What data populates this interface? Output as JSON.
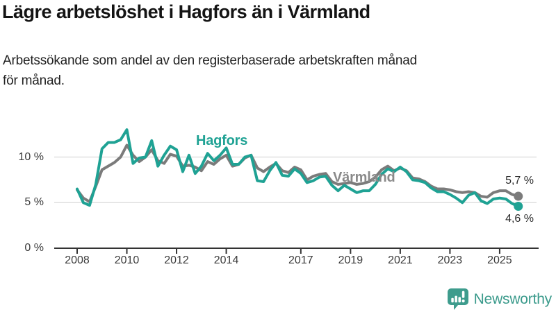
{
  "header": {
    "title": "Lägre arbetslöshet i Hagfors än i Värmland",
    "subtitle_lines": [
      "Arbetssökande som andel av den registerbaserade arbetskraften månad",
      "för månad."
    ]
  },
  "footer": {
    "brand": "Newsworthy",
    "logo_icon": "bar-chart-speech-bubble-icon",
    "brand_color": "#3a9a8b"
  },
  "chart_data": {
    "type": "line",
    "title": "Lägre arbetslöshet i Hagfors än i Värmland",
    "xlabel": "",
    "ylabel": "",
    "unit": "%",
    "grid": "horizontal-only",
    "legend": "inline-labels",
    "ylim": [
      0,
      13.7
    ],
    "grid_color": "#d9d9d9",
    "axis_color": "#333333",
    "x": [
      2008,
      2008.25,
      2008.5,
      2008.75,
      2009,
      2009.25,
      2009.5,
      2009.75,
      2010,
      2010.25,
      2010.5,
      2010.75,
      2011,
      2011.25,
      2011.5,
      2011.75,
      2012,
      2012.25,
      2012.5,
      2012.75,
      2013,
      2013.25,
      2013.5,
      2013.75,
      2014,
      2014.25,
      2014.5,
      2014.75,
      2015,
      2015.25,
      2015.5,
      2015.75,
      2016,
      2016.25,
      2016.5,
      2016.75,
      2017,
      2017.25,
      2017.5,
      2017.75,
      2018,
      2018.25,
      2018.5,
      2018.75,
      2019,
      2019.25,
      2019.5,
      2019.75,
      2020,
      2020.25,
      2020.5,
      2020.75,
      2021,
      2021.25,
      2021.5,
      2021.75,
      2022,
      2022.25,
      2022.5,
      2022.75,
      2023,
      2023.25,
      2023.5,
      2023.75,
      2024,
      2024.25,
      2024.5,
      2024.75,
      2025,
      2025.25,
      2025.5,
      2025.75
    ],
    "series": [
      {
        "name": "Värmland",
        "color": "#7b7b7b",
        "end_label": "5,7 %",
        "end_value": 5.7,
        "values": [
          6.4,
          5.5,
          5.1,
          6.8,
          8.6,
          9.0,
          9.4,
          10.0,
          11.3,
          10.2,
          9.5,
          10.0,
          10.8,
          9.6,
          9.3,
          10.3,
          10.1,
          9.0,
          9.1,
          8.9,
          8.5,
          9.5,
          9.2,
          9.8,
          10.2,
          9.0,
          9.2,
          9.9,
          10.2,
          8.8,
          8.4,
          8.9,
          9.3,
          8.5,
          8.3,
          8.9,
          8.6,
          7.5,
          7.9,
          8.1,
          8.2,
          7.3,
          7.0,
          7.1,
          7.2,
          7.0,
          7.1,
          7.3,
          7.8,
          8.6,
          9.0,
          8.5,
          8.8,
          8.5,
          7.7,
          7.6,
          7.3,
          6.8,
          6.5,
          6.5,
          6.4,
          6.2,
          6.1,
          6.2,
          6.1,
          5.7,
          5.6,
          6.1,
          6.3,
          6.3,
          5.9,
          5.7
        ]
      },
      {
        "name": "Hagfors",
        "color": "#1fa294",
        "end_label": "4,6 %",
        "end_value": 4.6,
        "values": [
          6.5,
          5.0,
          4.7,
          7.0,
          10.9,
          11.6,
          11.6,
          11.9,
          13.0,
          9.3,
          9.9,
          10.0,
          11.8,
          9.0,
          10.2,
          11.2,
          10.8,
          8.4,
          10.2,
          8.2,
          9.0,
          10.4,
          9.6,
          10.2,
          11.0,
          9.2,
          9.2,
          10.0,
          10.2,
          7.4,
          7.3,
          8.5,
          9.4,
          8.0,
          7.9,
          8.7,
          8.2,
          7.2,
          7.4,
          7.8,
          7.9,
          6.9,
          6.3,
          6.9,
          6.5,
          6.1,
          6.3,
          6.3,
          7.0,
          8.1,
          8.7,
          8.4,
          8.9,
          8.4,
          7.5,
          7.4,
          7.2,
          6.6,
          6.2,
          6.2,
          5.9,
          5.5,
          5.0,
          5.8,
          6.1,
          5.2,
          4.9,
          5.4,
          5.5,
          5.4,
          4.9,
          4.6
        ]
      }
    ],
    "y_ticks": [
      {
        "value": 0,
        "label": "0 %"
      },
      {
        "value": 5,
        "label": "5 %"
      },
      {
        "value": 10,
        "label": "10 %"
      }
    ],
    "x_ticks": [
      {
        "value": 2008,
        "label": "2008"
      },
      {
        "value": 2010,
        "label": "2010"
      },
      {
        "value": 2012,
        "label": "2012"
      },
      {
        "value": 2014,
        "label": "2014"
      },
      {
        "value": 2017,
        "label": "2017"
      },
      {
        "value": 2019,
        "label": "2019"
      },
      {
        "value": 2021,
        "label": "2021"
      },
      {
        "value": 2023,
        "label": "2023"
      },
      {
        "value": 2025,
        "label": "2025"
      }
    ]
  }
}
